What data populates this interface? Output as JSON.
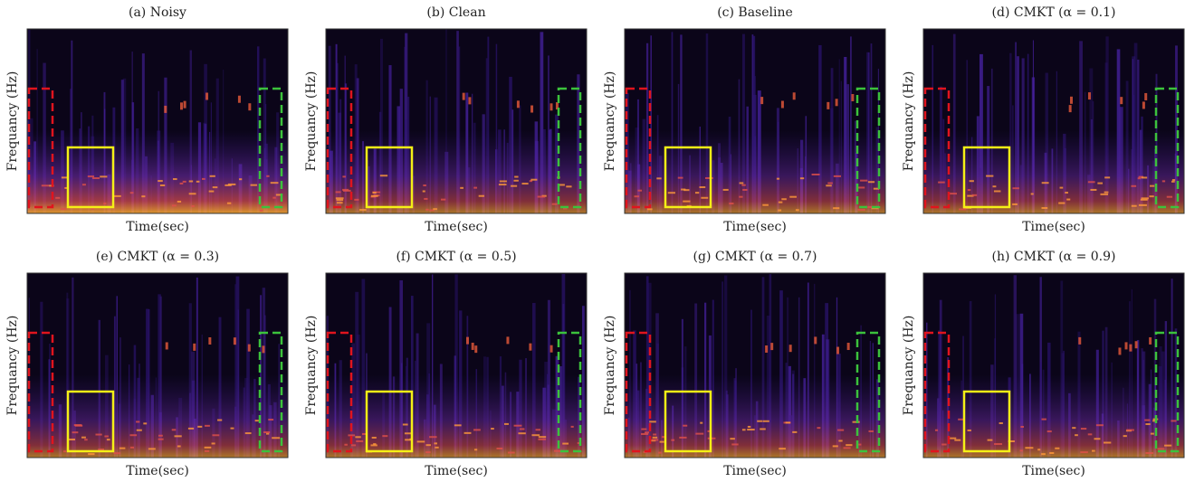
{
  "panels": [
    {
      "title": "(a) Noisy",
      "xlabel": "Time(sec)",
      "ylabel": "Frequancy (Hz)"
    },
    {
      "title": "(b) Clean",
      "xlabel": "Time(sec)",
      "ylabel": "Frequancy (Hz)"
    },
    {
      "title": "(c) Baseline",
      "xlabel": "Time(sec)",
      "ylabel": "Frequancy (Hz)"
    },
    {
      "title": "(d) CMKT (α = 0.1)",
      "xlabel": "Time(sec)",
      "ylabel": "Frequancy (Hz)"
    },
    {
      "title": "(e) CMKT (α = 0.3)",
      "xlabel": "Time(sec)",
      "ylabel": "Frequancy (Hz)"
    },
    {
      "title": "(f) CMKT (α = 0.5)",
      "xlabel": "Time(sec)",
      "ylabel": "Frequancy (Hz)"
    },
    {
      "title": "(g) CMKT (α = 0.7)",
      "xlabel": "Time(sec)",
      "ylabel": "Frequancy (Hz)"
    },
    {
      "title": "(h) CMKT (α = 0.9)",
      "xlabel": "Time(sec)",
      "ylabel": "Frequancy (Hz)"
    }
  ]
}
